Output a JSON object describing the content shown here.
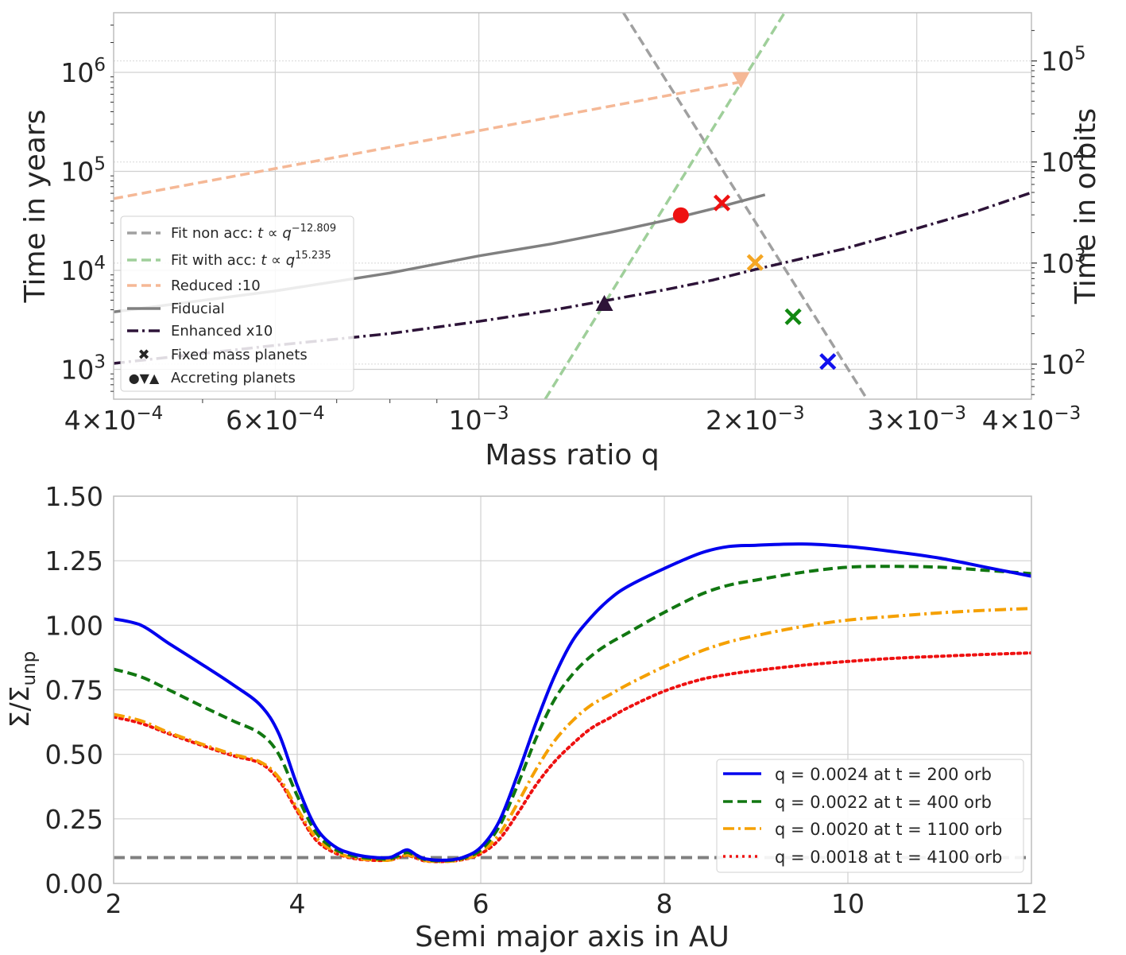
{
  "chart_data": [
    {
      "type": "line",
      "panel": "top",
      "xlabel": "Mass ratio q",
      "ylabel": "Time in years",
      "ylabel_right": "Time in orbits",
      "xscale": "log",
      "yscale": "log",
      "xlim": [
        0.0004,
        0.004
      ],
      "ylim": [
        500,
        4000000
      ],
      "ylim_right": [
        45,
        300000
      ],
      "grid": true,
      "legend_position": "lower-left",
      "x_ticks": [
        {
          "value": 0.0004,
          "base": "4",
          "exp": "−10",
          "sup": "−4"
        },
        {
          "value": 0.0006,
          "base": "6",
          "exp": "−10",
          "sup": "−4"
        },
        {
          "value": 0.001,
          "base": "",
          "exp": "10",
          "sup": "−3"
        },
        {
          "value": 0.002,
          "base": "2",
          "exp": "−10",
          "sup": "−3"
        },
        {
          "value": 0.003,
          "base": "3",
          "exp": "−10",
          "sup": "−3"
        },
        {
          "value": 0.004,
          "base": "4",
          "exp": "−10",
          "sup": "−3"
        }
      ],
      "x_tick_labels": [
        "4×10⁻⁴",
        "6×10⁻⁴",
        "10⁻³",
        "2×10⁻³",
        "3×10⁻³",
        "4×10⁻³"
      ],
      "y_ticks": [
        {
          "value": 1000,
          "base": "10",
          "sup": "3"
        },
        {
          "value": 10000,
          "base": "10",
          "sup": "4"
        },
        {
          "value": 100000,
          "base": "10",
          "sup": "5"
        },
        {
          "value": 1000000,
          "base": "10",
          "sup": "6"
        }
      ],
      "y_right_ticks": [
        {
          "value": 100,
          "base": "10",
          "sup": "2"
        },
        {
          "value": 1000,
          "base": "10",
          "sup": "3"
        },
        {
          "value": 10000,
          "base": "10",
          "sup": "4"
        },
        {
          "value": 100000,
          "base": "10",
          "sup": "5"
        }
      ],
      "series": [
        {
          "name": "Fit non acc: t ∝ q^−12.809",
          "label_main": "Fit non acc: ",
          "label_t": "t ∝ q",
          "label_sup": "−12.809",
          "style": "dashed",
          "color": "#a0a0a0",
          "x": [
            0.001437,
            0.002648
          ],
          "y": [
            4000000,
            500
          ]
        },
        {
          "name": "Fit with acc: t ∝ q^15.235",
          "label_main": "Fit with acc: ",
          "label_t": "t ∝ q",
          "label_sup": "15.235",
          "style": "dashed",
          "color": "#9fcf9a",
          "x": [
            0.001181,
            0.002153
          ],
          "y": [
            500,
            4000000
          ]
        },
        {
          "name": "Reduced :10",
          "style": "dashed",
          "color": "#f5b896",
          "x": [
            0.0004,
            0.00193
          ],
          "y": [
            53000,
            800000
          ]
        },
        {
          "name": "Fiducial",
          "style": "solid",
          "color": "#808080",
          "x": [
            0.0004,
            0.0006,
            0.0008,
            0.001,
            0.0012,
            0.0014,
            0.0016,
            0.0018,
            0.00205
          ],
          "y": [
            3800,
            6200,
            9400,
            14000,
            18500,
            24500,
            32000,
            42000,
            58000
          ]
        },
        {
          "name": "Enhanced x10",
          "style": "dashdot",
          "color": "#2d1338",
          "x": [
            0.0004,
            0.0006,
            0.0008,
            0.001,
            0.0012,
            0.0014,
            0.0016,
            0.0018,
            0.002,
            0.0025,
            0.003,
            0.0035,
            0.004
          ],
          "y": [
            1150,
            1750,
            2300,
            3050,
            3950,
            5100,
            6400,
            8000,
            10200,
            16500,
            26500,
            40000,
            61000
          ]
        }
      ],
      "points": [
        {
          "group": "Fixed mass planets",
          "marker": "x",
          "color": "#ee1111",
          "q": 0.00184,
          "t": 48000
        },
        {
          "group": "Fixed mass planets",
          "marker": "x",
          "color": "#f5a623",
          "q": 0.002,
          "t": 12000
        },
        {
          "group": "Fixed mass planets",
          "marker": "x",
          "color": "#118811",
          "q": 0.0022,
          "t": 3400
        },
        {
          "group": "Fixed mass planets",
          "marker": "x",
          "color": "#1111ee",
          "q": 0.0024,
          "t": 1200
        },
        {
          "group": "Accreting planets",
          "marker": "circle",
          "color": "#ee1111",
          "q": 0.00166,
          "t": 36000
        },
        {
          "group": "Accreting planets",
          "marker": "triangle-down",
          "color": "#f5b896",
          "q": 0.00193,
          "t": 850000
        },
        {
          "group": "Accreting planets",
          "marker": "triangle-up",
          "color": "#2d1338",
          "q": 0.00137,
          "t": 4600
        }
      ],
      "legend_markers": [
        {
          "name": "Fixed mass planets",
          "glyph": "✖"
        },
        {
          "name": "Accreting planets",
          "glyph": "●▼▲"
        }
      ]
    },
    {
      "type": "line",
      "panel": "bottom",
      "xlabel": "Semi major axis in AU",
      "ylabel": "Σ/Σ",
      "ylabel_sub": "unp",
      "xlim": [
        2,
        12
      ],
      "ylim": [
        0,
        1.5
      ],
      "grid": true,
      "legend_position": "lower-right",
      "x_tick_labels": [
        "2",
        "4",
        "6",
        "8",
        "10",
        "12"
      ],
      "x_ticks": [
        2,
        4,
        6,
        8,
        10,
        12
      ],
      "y_tick_labels": [
        "0.00",
        "0.25",
        "0.50",
        "0.75",
        "1.00",
        "1.25",
        "1.50"
      ],
      "y_ticks": [
        0,
        0.25,
        0.5,
        0.75,
        1.0,
        1.25,
        1.5
      ],
      "hline": {
        "y": 0.1,
        "style": "dashed",
        "color": "#808080"
      },
      "series": [
        {
          "name": "q = 0.0024 at t = 200 orb",
          "style": "solid",
          "color": "#0000ee",
          "x": [
            2.0,
            2.3,
            2.6,
            3.0,
            3.3,
            3.6,
            3.8,
            4.0,
            4.2,
            4.4,
            4.6,
            4.8,
            5.0,
            5.1,
            5.2,
            5.3,
            5.4,
            5.6,
            5.8,
            6.0,
            6.2,
            6.4,
            6.6,
            6.8,
            7.0,
            7.2,
            7.4,
            7.6,
            8.0,
            8.4,
            8.7,
            9.0,
            9.5,
            10.0,
            10.5,
            11.0,
            11.5,
            12.0
          ],
          "y": [
            1.025,
            1.0,
            0.93,
            0.84,
            0.77,
            0.69,
            0.58,
            0.38,
            0.22,
            0.145,
            0.115,
            0.102,
            0.1,
            0.115,
            0.13,
            0.11,
            0.095,
            0.09,
            0.1,
            0.14,
            0.24,
            0.42,
            0.62,
            0.8,
            0.94,
            1.03,
            1.1,
            1.15,
            1.22,
            1.28,
            1.305,
            1.31,
            1.315,
            1.305,
            1.285,
            1.26,
            1.225,
            1.19
          ]
        },
        {
          "name": "q = 0.0022 at t = 400 orb",
          "style": "dashed",
          "color": "#117711",
          "x": [
            2.0,
            2.3,
            2.6,
            3.0,
            3.3,
            3.6,
            3.8,
            4.0,
            4.2,
            4.4,
            4.6,
            4.8,
            5.0,
            5.1,
            5.2,
            5.3,
            5.4,
            5.6,
            5.8,
            6.0,
            6.2,
            6.4,
            6.6,
            6.8,
            7.0,
            7.2,
            7.4,
            7.6,
            8.0,
            8.4,
            8.7,
            9.0,
            9.5,
            10.0,
            10.5,
            11.0,
            11.5,
            12.0
          ],
          "y": [
            0.83,
            0.8,
            0.75,
            0.68,
            0.63,
            0.58,
            0.5,
            0.34,
            0.2,
            0.135,
            0.108,
            0.097,
            0.095,
            0.107,
            0.12,
            0.105,
            0.092,
            0.088,
            0.097,
            0.13,
            0.22,
            0.38,
            0.56,
            0.71,
            0.81,
            0.88,
            0.93,
            0.97,
            1.05,
            1.12,
            1.155,
            1.175,
            1.205,
            1.225,
            1.228,
            1.225,
            1.213,
            1.2
          ]
        },
        {
          "name": "q = 0.0020 at t = 1100 orb",
          "style": "dashdot",
          "color": "#f5a000",
          "x": [
            2.0,
            2.3,
            2.6,
            3.0,
            3.3,
            3.6,
            3.8,
            4.0,
            4.2,
            4.4,
            4.6,
            4.8,
            5.0,
            5.1,
            5.2,
            5.3,
            5.4,
            5.6,
            5.8,
            6.0,
            6.2,
            6.4,
            6.6,
            6.8,
            7.0,
            7.2,
            7.4,
            7.6,
            8.0,
            8.4,
            8.7,
            9.0,
            9.5,
            10.0,
            10.5,
            11.0,
            11.5,
            12.0
          ],
          "y": [
            0.655,
            0.63,
            0.585,
            0.535,
            0.5,
            0.47,
            0.41,
            0.29,
            0.18,
            0.125,
            0.1,
            0.092,
            0.09,
            0.1,
            0.11,
            0.1,
            0.088,
            0.085,
            0.093,
            0.12,
            0.19,
            0.31,
            0.44,
            0.55,
            0.63,
            0.69,
            0.73,
            0.77,
            0.84,
            0.9,
            0.935,
            0.96,
            0.995,
            1.02,
            1.035,
            1.048,
            1.058,
            1.065
          ]
        },
        {
          "name": "q = 0.0018 at t = 4100 orb",
          "style": "dotted",
          "color": "#ee1111",
          "x": [
            2.0,
            2.3,
            2.6,
            3.0,
            3.3,
            3.6,
            3.8,
            4.0,
            4.2,
            4.4,
            4.6,
            4.8,
            5.0,
            5.1,
            5.2,
            5.3,
            5.4,
            5.6,
            5.8,
            6.0,
            6.2,
            6.4,
            6.6,
            6.8,
            7.0,
            7.2,
            7.4,
            7.6,
            8.0,
            8.4,
            8.7,
            9.0,
            9.5,
            10.0,
            10.5,
            11.0,
            11.5,
            12.0
          ],
          "y": [
            0.645,
            0.62,
            0.58,
            0.53,
            0.495,
            0.465,
            0.4,
            0.28,
            0.17,
            0.12,
            0.098,
            0.09,
            0.09,
            0.1,
            0.108,
            0.098,
            0.087,
            0.085,
            0.092,
            0.115,
            0.17,
            0.27,
            0.38,
            0.47,
            0.54,
            0.6,
            0.64,
            0.68,
            0.745,
            0.79,
            0.81,
            0.825,
            0.845,
            0.86,
            0.872,
            0.88,
            0.887,
            0.893
          ]
        }
      ]
    }
  ]
}
